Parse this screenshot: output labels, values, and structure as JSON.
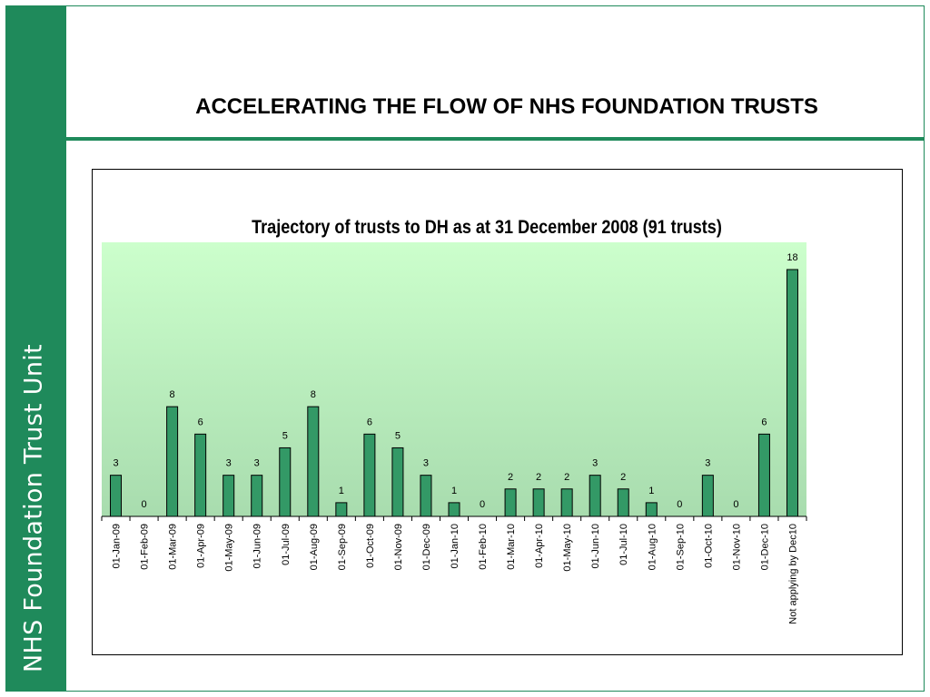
{
  "sidebar": {
    "label": "NHS Foundation Trust Unit"
  },
  "header": {
    "title": "ACCELERATING THE FLOW OF NHS FOUNDATION TRUSTS"
  },
  "colors": {
    "brand": "#1f8a5b",
    "bar_fill": "#339966",
    "plot_top": "#ccffcc",
    "plot_bottom": "#a8dcae"
  },
  "chart_data": {
    "type": "bar",
    "title": "Trajectory of trusts to DH as at 31 December 2008 (91 trusts)",
    "xlabel": "",
    "ylabel": "",
    "ylim": [
      0,
      18
    ],
    "grid": false,
    "legend": "none",
    "categories": [
      "01-Jan-09",
      "01-Feb-09",
      "01-Mar-09",
      "01-Apr-09",
      "01-May-09",
      "01-Jun-09",
      "01-Jul-09",
      "01-Aug-09",
      "01-Sep-09",
      "01-Oct-09",
      "01-Nov-09",
      "01-Dec-09",
      "01-Jan-10",
      "01-Feb-10",
      "01-Mar-10",
      "01-Apr-10",
      "01-May-10",
      "01-Jun-10",
      "01-Jul-10",
      "01-Aug-10",
      "01-Sep-10",
      "01-Oct-10",
      "01-Nov-10",
      "01-Dec-10",
      "Not applying by Dec10"
    ],
    "values": [
      3,
      0,
      8,
      6,
      3,
      3,
      5,
      8,
      1,
      6,
      5,
      3,
      1,
      0,
      2,
      2,
      2,
      3,
      2,
      1,
      0,
      3,
      0,
      6,
      18
    ]
  }
}
